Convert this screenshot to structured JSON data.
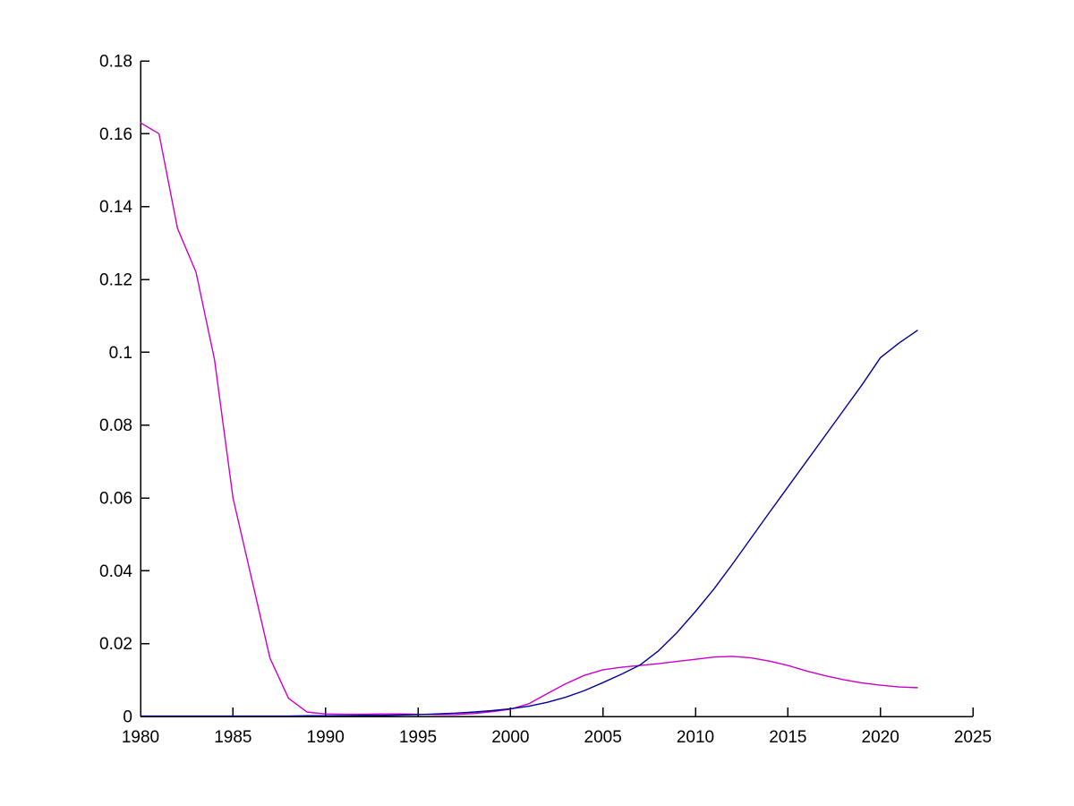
{
  "figure": {
    "background": "#FFFFFF",
    "axis_color": "#000000"
  },
  "chart_data": {
    "type": "line",
    "title": "",
    "xlabel": "",
    "ylabel": "",
    "grid": false,
    "legend": "none",
    "xlim": [
      1980,
      2025
    ],
    "ylim": [
      0,
      0.18
    ],
    "x_ticks": [
      1980,
      1985,
      1990,
      1995,
      2000,
      2005,
      2010,
      2015,
      2020,
      2025
    ],
    "x_tick_labels": [
      "1980",
      "1985",
      "1990",
      "1995",
      "2000",
      "2005",
      "2010",
      "2015",
      "2020",
      "2025"
    ],
    "y_ticks": [
      0,
      0.02,
      0.04,
      0.06,
      0.08,
      0.1,
      0.12,
      0.14,
      0.16,
      0.18
    ],
    "y_tick_labels": [
      "0",
      "0.02",
      "0.04",
      "0.06",
      "0.08",
      "0.1",
      "0.12",
      "0.14",
      "0.16",
      "0.18"
    ],
    "x": [
      1980,
      1981,
      1982,
      1983,
      1984,
      1985,
      1986,
      1987,
      1988,
      1989,
      1990,
      1991,
      1992,
      1993,
      1994,
      1995,
      1996,
      1997,
      1998,
      1999,
      2000,
      2001,
      2002,
      2003,
      2004,
      2005,
      2006,
      2007,
      2008,
      2009,
      2010,
      2011,
      2012,
      2013,
      2014,
      2015,
      2016,
      2017,
      2018,
      2019,
      2020,
      2021,
      2022
    ],
    "series": [
      {
        "name": "magenta-series",
        "color": "#CC00CC",
        "values": [
          0.163,
          0.16,
          0.134,
          0.122,
          0.098,
          0.06,
          0.038,
          0.016,
          0.005,
          0.0012,
          0.0007,
          0.0006,
          0.0006,
          0.0007,
          0.0007,
          0.0006,
          0.0005,
          0.0005,
          0.0008,
          0.0013,
          0.002,
          0.0035,
          0.0063,
          0.009,
          0.0113,
          0.0128,
          0.0135,
          0.014,
          0.0145,
          0.0151,
          0.0157,
          0.0163,
          0.0165,
          0.0161,
          0.0152,
          0.014,
          0.0125,
          0.0112,
          0.0101,
          0.0092,
          0.0086,
          0.0081,
          0.0079
        ]
      },
      {
        "name": "blue-series",
        "color": "#000099",
        "values": [
          0.0001,
          0.0001,
          0.0001,
          0.0001,
          0.0001,
          0.0001,
          0.0001,
          0.0001,
          0.0001,
          0.0002,
          0.0002,
          0.0002,
          0.0003,
          0.0003,
          0.0004,
          0.0005,
          0.0007,
          0.0009,
          0.0012,
          0.0016,
          0.0021,
          0.0028,
          0.0039,
          0.0053,
          0.0071,
          0.0093,
          0.0116,
          0.0141,
          0.018,
          0.023,
          0.0288,
          0.035,
          0.0418,
          0.0489,
          0.056,
          0.063,
          0.07,
          0.077,
          0.084,
          0.091,
          0.0985,
          0.1025,
          0.106
        ]
      }
    ]
  }
}
